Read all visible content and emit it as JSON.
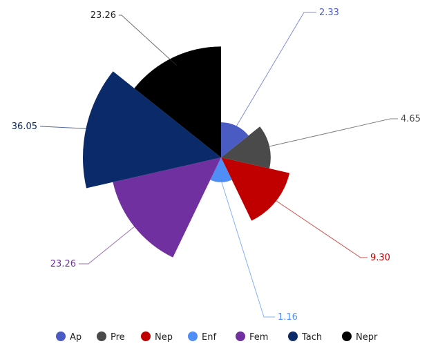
{
  "chart_data": {
    "type": "polar-area",
    "series": [
      {
        "name": "Ap",
        "value": 2.33,
        "label": "2.33",
        "color": "#4a5bc4"
      },
      {
        "name": "Pre",
        "value": 4.65,
        "label": "4.65",
        "color": "#4a4a4a"
      },
      {
        "name": "Nep",
        "value": 9.3,
        "label": "9.30",
        "color": "#c00000"
      },
      {
        "name": "Enf",
        "value": 1.16,
        "label": "1.16",
        "color": "#4f8ef7"
      },
      {
        "name": "Fem",
        "value": 23.26,
        "label": "23.26",
        "color": "#7030a0"
      },
      {
        "name": "Tach",
        "value": 36.05,
        "label": "36.05",
        "color": "#0a2a6a"
      },
      {
        "name": "Nepr",
        "value": 23.26,
        "label": "23.26",
        "color": "#000000"
      }
    ],
    "legend_position": "bottom"
  }
}
